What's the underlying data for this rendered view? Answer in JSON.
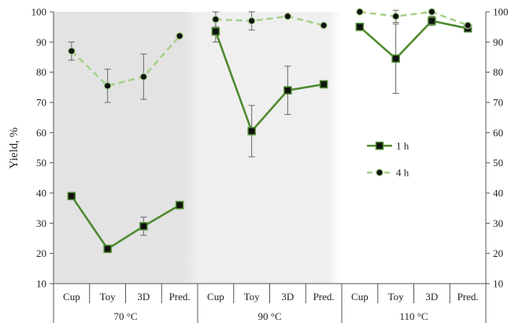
{
  "chart_data": {
    "type": "line",
    "ylabel": "Yield, %",
    "xlabel": "",
    "ylim": [
      10,
      100
    ],
    "yticks": [
      10,
      20,
      30,
      40,
      50,
      60,
      70,
      80,
      90,
      100
    ],
    "grid": false,
    "legend_position": "right, inside 90 °C panel",
    "groups": [
      {
        "label": "70 °C",
        "background": "#e3e3e3",
        "categories": [
          "Cup",
          "Toy",
          "3D",
          "Pred."
        ]
      },
      {
        "label": "90 °C",
        "background": "#efefef",
        "categories": [
          "Cup",
          "Toy",
          "3D",
          "Pred."
        ]
      },
      {
        "label": "110 °C",
        "background": "#ffffff",
        "categories": [
          "Cup",
          "Toy",
          "3D",
          "Pred."
        ]
      }
    ],
    "series": [
      {
        "name": "1 h",
        "color": "#4e8a2f",
        "line_style": "solid",
        "marker": "square",
        "values": [
          [
            39,
            21.5,
            29,
            36
          ],
          [
            93.5,
            60.5,
            74,
            76
          ],
          [
            95,
            84.5,
            97,
            94.5
          ]
        ],
        "errors": [
          [
            0,
            0,
            3,
            0
          ],
          [
            3.5,
            8.5,
            8,
            0
          ],
          [
            0,
            11.5,
            1.5,
            0
          ]
        ]
      },
      {
        "name": "4 h",
        "color": "#a6d08a",
        "line_style": "dashed",
        "marker": "circle",
        "values": [
          [
            87,
            75.5,
            78.5,
            92
          ],
          [
            97.5,
            97,
            98.5,
            95.5
          ],
          [
            100,
            98.5,
            100,
            95.5
          ]
        ],
        "errors": [
          [
            3,
            5.5,
            7.5,
            0
          ],
          [
            2.5,
            3,
            0,
            0
          ],
          [
            0,
            2,
            0,
            0
          ]
        ]
      }
    ]
  }
}
